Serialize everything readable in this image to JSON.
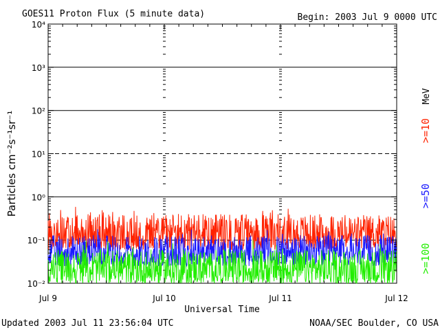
{
  "chart_data": {
    "type": "line",
    "title": "GOES11 Proton Flux (5 minute data)",
    "begin_label": "Begin: 2003 Jul 9 0000 UTC",
    "xlabel": "Universal Time",
    "ylabel": "Particles cm⁻²s⁻¹sr⁻¹",
    "y_scale": "log",
    "ylim": [
      0.01,
      10000
    ],
    "y_ticks": [
      "10⁻²",
      "10⁻¹",
      "10⁰",
      "10¹",
      "10²",
      "10³",
      "10⁴"
    ],
    "x_ticks": [
      "Jul 9",
      "Jul 10",
      "Jul 11",
      "Jul 12"
    ],
    "x_range_hours": [
      0,
      72
    ],
    "energy_unit": "MeV",
    "grid": "horizontal decade lines; dashed at 10¹ and 10⁻¹",
    "series": [
      {
        "name": ">=10",
        "color": "#ff2200",
        "typical_range": [
          0.06,
          0.4
        ],
        "peak": 0.6
      },
      {
        "name": ">=50",
        "color": "#1a1aff",
        "typical_range": [
          0.025,
          0.13
        ],
        "peak": 0.2
      },
      {
        "name": ">=100",
        "color": "#22ee00",
        "typical_range": [
          0.01,
          0.06
        ],
        "peak": 0.1
      }
    ],
    "footer_left": "Updated 2003 Jul 11 23:56:04 UTC",
    "footer_right": "NOAA/SEC Boulder, CO USA"
  }
}
